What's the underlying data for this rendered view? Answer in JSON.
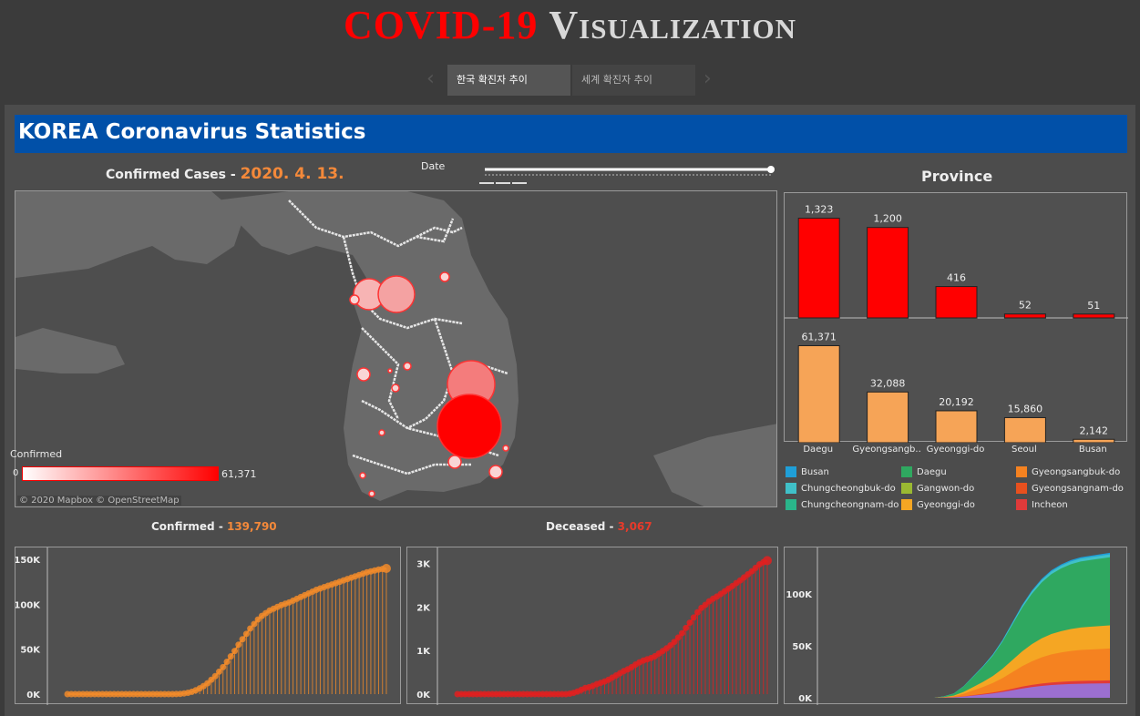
{
  "header": {
    "title_part1": "COVID-19",
    "title_part2": "Visualization",
    "tabs": [
      "한국 확진자 추이",
      "세계 확진자 추이"
    ]
  },
  "banner": {
    "title": "KOREA Coronavirus Statistics"
  },
  "map": {
    "label_prefix": "Confirmed Cases -",
    "date": "2020. 4. 13.",
    "date_filter_label": "Date",
    "legend_title": "Confirmed",
    "legend_min": "0",
    "legend_max": "61,371",
    "attribution": "© 2020 Mapbox © OpenStreetMap",
    "land_color": "#6a6a6a",
    "sea_color": "#4e4e4e",
    "bubble_color": "#ff0000"
  },
  "province": {
    "title": "Province",
    "bar_color_top": "#ff0000",
    "bar_color_bottom": "#f6a457"
  },
  "bottom": {
    "confirmed_label": "Confirmed -",
    "confirmed_value": "139,790",
    "deceased_label": "Deceased -",
    "deceased_value": "3,067"
  },
  "chart_data": [
    {
      "type": "bar",
      "title": "Province",
      "categories": [
        "Daegu",
        "Gyeongsangb..",
        "Gyeonggi-do",
        "Seoul",
        "Busan"
      ],
      "values": [
        1323,
        1200,
        416,
        52,
        51
      ],
      "value_labels": [
        "1,323",
        "1,200",
        "416",
        "52",
        "51"
      ],
      "ylim": [
        0,
        1450
      ]
    },
    {
      "type": "bar",
      "categories": [
        "Daegu",
        "Gyeongsangb..",
        "Gyeonggi-do",
        "Seoul",
        "Busan"
      ],
      "values": [
        61371,
        32088,
        20192,
        15860,
        2142
      ],
      "value_labels": [
        "61,371",
        "32,088",
        "20,192",
        "15,860",
        "2,142"
      ],
      "ylim": [
        0,
        68000
      ]
    },
    {
      "type": "line",
      "title": "Confirmed - 139,790",
      "yticks": [
        "0K",
        "50K",
        "100K",
        "150K"
      ],
      "ytick_values": [
        0,
        50000,
        100000,
        150000
      ],
      "ylim": [
        0,
        155000
      ],
      "color": "#f08a2a",
      "values": [
        0,
        0,
        0,
        0,
        0,
        0,
        0,
        0,
        0,
        0,
        0,
        0,
        0,
        0,
        0,
        0,
        0,
        0,
        0,
        0,
        0,
        0,
        0,
        0,
        0,
        0,
        0,
        0,
        100,
        300,
        800,
        1500,
        2600,
        4300,
        6400,
        9000,
        12000,
        16000,
        20000,
        25000,
        30000,
        36000,
        42000,
        48000,
        55000,
        61000,
        67000,
        73000,
        78000,
        83000,
        87000,
        90000,
        93000,
        95000,
        97000,
        99000,
        100500,
        102000,
        104000,
        106000,
        108000,
        110000,
        112000,
        114000,
        116000,
        117500,
        119000,
        120500,
        122000,
        123500,
        125000,
        126500,
        128000,
        129500,
        131000,
        132500,
        134000,
        135500,
        136500,
        137500,
        138500,
        139200,
        139790
      ],
      "series": [
        {
          "name": "Confirmed"
        }
      ]
    },
    {
      "type": "line",
      "title": "Deceased - 3,067",
      "yticks": [
        "0K",
        "1K",
        "2K",
        "3K"
      ],
      "ytick_values": [
        0,
        1000,
        2000,
        3000
      ],
      "ylim": [
        0,
        3200
      ],
      "color": "#e02020",
      "values": [
        0,
        0,
        0,
        0,
        0,
        0,
        0,
        0,
        0,
        0,
        0,
        0,
        0,
        0,
        0,
        0,
        0,
        0,
        0,
        0,
        0,
        0,
        0,
        0,
        0,
        0,
        0,
        0,
        0,
        10,
        30,
        60,
        100,
        140,
        160,
        190,
        230,
        260,
        290,
        330,
        380,
        430,
        480,
        530,
        570,
        620,
        680,
        730,
        770,
        800,
        830,
        870,
        930,
        990,
        1050,
        1120,
        1200,
        1300,
        1400,
        1520,
        1640,
        1760,
        1880,
        1980,
        2050,
        2130,
        2190,
        2240,
        2300,
        2360,
        2420,
        2480,
        2550,
        2610,
        2680,
        2750,
        2820,
        2900,
        2980,
        3030,
        3067
      ],
      "series": [
        {
          "name": "Deceased"
        }
      ]
    },
    {
      "type": "area",
      "yticks": [
        "0K",
        "50K",
        "100K"
      ],
      "ytick_values": [
        0,
        50000,
        100000
      ],
      "ylim": [
        0,
        145000
      ],
      "series": [
        {
          "name": "Busan",
          "color": "#1f9fd8"
        },
        {
          "name": "Chungcheongbuk-do",
          "color": "#40c0c8"
        },
        {
          "name": "Chungcheongnam-do",
          "color": "#2ab58a"
        },
        {
          "name": "Daegu",
          "color": "#2fa860"
        },
        {
          "name": "Gangwon-do",
          "color": "#9ab832"
        },
        {
          "name": "Gyeonggi-do",
          "color": "#f5a623"
        },
        {
          "name": "Gyeongsangbuk-do",
          "color": "#f58220"
        },
        {
          "name": "Gyeongsangnam-do",
          "color": "#e8501e"
        },
        {
          "name": "Incheon",
          "color": "#e03a3a"
        }
      ]
    }
  ]
}
